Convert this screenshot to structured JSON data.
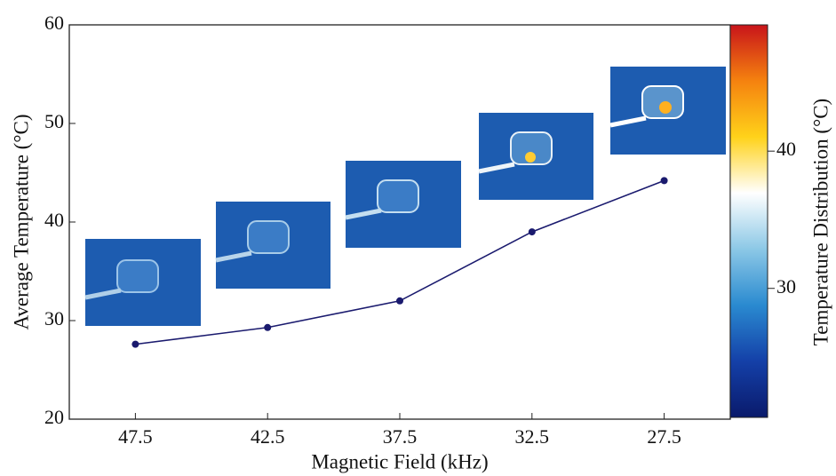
{
  "chart_data": {
    "type": "line",
    "categories": [
      "47.5",
      "42.5",
      "37.5",
      "32.5",
      "27.5"
    ],
    "values": [
      27.6,
      29.3,
      32.0,
      39.0,
      44.2
    ],
    "color": "#1a1a6e",
    "x_label": "Magnetic Field (kHz)",
    "y_label": "Average Temperature (°C)",
    "ylim": [
      20,
      60
    ],
    "yticks": [
      20,
      30,
      40,
      50,
      60
    ],
    "colorbar": {
      "label": "Temperature Distribution (°C)",
      "lim": [
        20.6,
        49.2
      ],
      "ticks": [
        30,
        40
      ],
      "colors": [
        "#0a1a6b",
        "#1440a8",
        "#2a8ad0",
        "#8cc8e6",
        "#ffffff",
        "#ffd21a",
        "#f5820f",
        "#c8141a"
      ]
    }
  }
}
